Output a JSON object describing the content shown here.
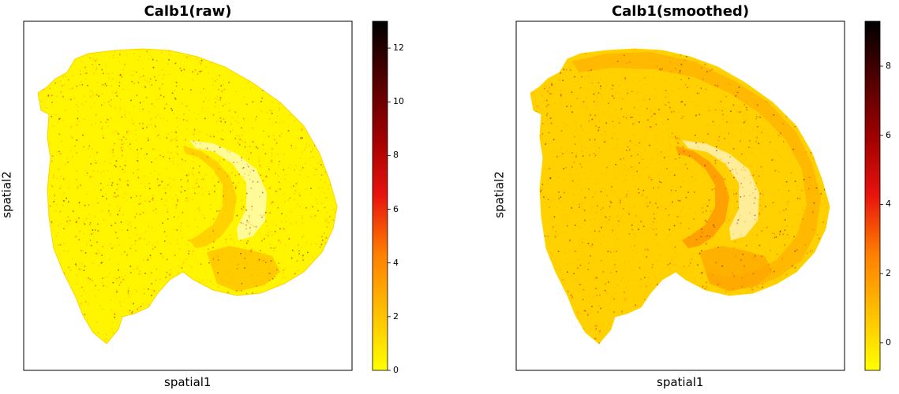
{
  "chart_data": [
    {
      "type": "heatmap",
      "title": "Calb1(raw)",
      "xlabel": "spatial1",
      "ylabel": "spatial2",
      "colormap": [
        "#ffff00",
        "#ffbf00",
        "#ff7f00",
        "#e8140d",
        "#a00000",
        "#500000",
        "#000000"
      ],
      "colorbar": {
        "min": 0,
        "max": 13,
        "ticks": [
          0,
          2,
          4,
          6,
          8,
          10,
          12
        ]
      },
      "bg_level": 0.35,
      "hotspots": [
        {
          "region": "hippocampal band",
          "level": 3.5
        },
        {
          "region": "lower cortex",
          "level": 4
        }
      ]
    },
    {
      "type": "heatmap",
      "title": "Calb1(smoothed)",
      "xlabel": "spatial1",
      "ylabel": "spatial2",
      "colormap": [
        "#ffff00",
        "#ffbf00",
        "#ff7f00",
        "#e8140d",
        "#a00000",
        "#500000",
        "#000000"
      ],
      "colorbar": {
        "min": -0.8,
        "max": 9.3,
        "ticks": [
          0,
          2,
          4,
          6,
          8
        ]
      },
      "bg_level": 0.4,
      "hotspots": [
        {
          "region": "hippocampal band",
          "level": 4.5
        },
        {
          "region": "cortical layer",
          "level": 3
        },
        {
          "region": "lower cortex",
          "level": 3.5
        }
      ]
    }
  ]
}
